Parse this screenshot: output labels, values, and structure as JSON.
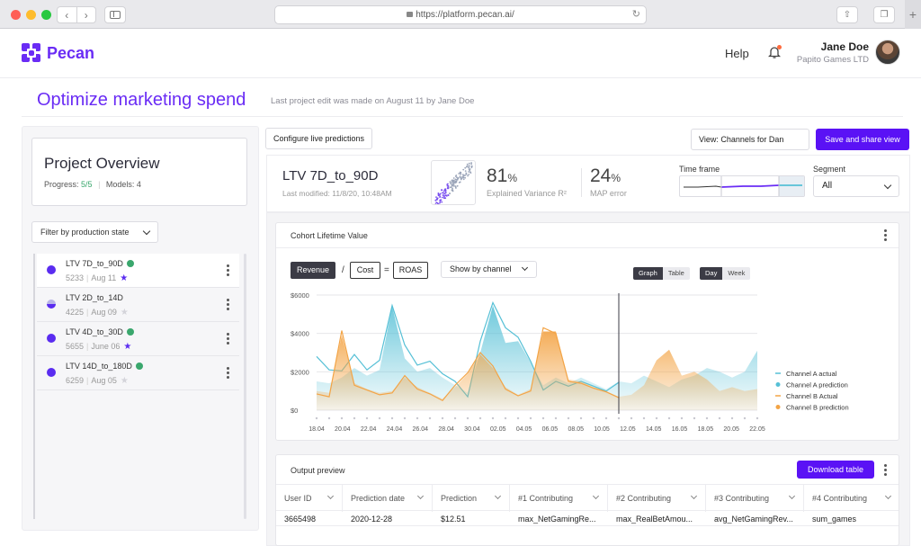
{
  "browser": {
    "url": "https://platform.pecan.ai/",
    "back_icon": "chevron-left-icon",
    "forward_icon": "chevron-right-icon",
    "new_tab_label": "+"
  },
  "header": {
    "logo_text": "Pecan",
    "help_label": "Help",
    "user_name": "Jane Doe",
    "user_company": "Papito Games LTD"
  },
  "title_row": {
    "title": "Optimize marketing spend",
    "last_edit": "Last project edit was made on August 11 by Jane Doe"
  },
  "overview": {
    "title": "Project Overview",
    "progress_label": "Progress:",
    "progress_value": "5/5",
    "models_label": "Models: 4",
    "filter_label": "Filter by production state"
  },
  "models": [
    {
      "name": "LTV 7D_to_90D",
      "id": "5233",
      "date": "Aug 11",
      "checked": true,
      "starred": true
    },
    {
      "name": "LTV 2D_to_14D",
      "id": "4225",
      "date": "Aug 09",
      "checked": false,
      "starred": false
    },
    {
      "name": "LTV 4D_to_30D",
      "id": "5655",
      "date": "June 06",
      "checked": true,
      "starred": true
    },
    {
      "name": "LTV 14D_to_180D",
      "id": "6259",
      "date": "Aug 05",
      "checked": true,
      "starred": false
    }
  ],
  "toolbar": {
    "configure_label": "Configure live predictions",
    "view_label": "View: Channels for Dan",
    "save_share_label": "Save and share view"
  },
  "summary": {
    "model_title": "LTV 7D_to_90D",
    "modified": "Last modified: 11/8/20, 10:48AM",
    "explained_variance_value": "81",
    "explained_variance_unit": "%",
    "explained_variance_label": "Explained Variance R²",
    "map_error_value": "24",
    "map_error_unit": "%",
    "map_error_label": "MAP error",
    "time_frame_label": "Time frame",
    "segment_label": "Segment",
    "segment_value": "All"
  },
  "cohort": {
    "title": "Cohort Lifetime Value",
    "revenue_label": "Revenue",
    "divide_op": "/",
    "cost_label": "Cost",
    "equals_op": "=",
    "roas_label": "ROAS",
    "show_by_label": "Show by channel",
    "graph_label": "Graph",
    "table_label": "Table",
    "day_label": "Day",
    "week_label": "Week"
  },
  "chart_data": {
    "type": "area",
    "y_ticks": [
      "$0",
      "$2000",
      "$4000",
      "$6000"
    ],
    "ylim": [
      0,
      6000
    ],
    "x_ticks": [
      "18.04",
      "20.04",
      "22.04",
      "24.04",
      "26.04",
      "28.04",
      "30.04",
      "02.05",
      "04.05",
      "06.05",
      "08.05",
      "10.05",
      "12.05",
      "14.05",
      "16.05",
      "18.05",
      "20.05",
      "22.05"
    ],
    "cursor_index": 24,
    "series": [
      {
        "name": "Channel A actual",
        "color": "#56c0d6",
        "style": "line",
        "values": [
          2800,
          2100,
          2050,
          2900,
          2100,
          2600,
          5450,
          3400,
          2350,
          2550,
          1900,
          1500,
          700,
          3600,
          5600,
          4300,
          3800,
          2550,
          1050,
          1500,
          1250,
          1500,
          1250,
          1000,
          1450,
          null,
          null,
          null,
          null,
          null,
          null,
          null,
          null,
          null,
          null,
          null
        ]
      },
      {
        "name": "Channel A prediction",
        "color": "#56c0d6",
        "style": "area",
        "values": [
          1500,
          1400,
          1700,
          2200,
          1800,
          2100,
          5400,
          2700,
          2000,
          2200,
          1700,
          1300,
          900,
          3000,
          5450,
          3500,
          3600,
          2500,
          1300,
          1700,
          1400,
          1700,
          1400,
          1100,
          1500,
          1400,
          1800,
          1500,
          1200,
          1600,
          1800,
          2200,
          2000,
          1700,
          2000,
          3100
        ]
      },
      {
        "name": "Channel B Actual",
        "color": "#f3a446",
        "style": "line",
        "values": [
          850,
          700,
          4150,
          1300,
          1050,
          800,
          900,
          1800,
          1100,
          850,
          500,
          1300,
          1950,
          3000,
          2300,
          1100,
          750,
          1000,
          4300,
          4000,
          1500,
          1400,
          1150,
          950,
          650,
          null,
          null,
          null,
          null,
          null,
          null,
          null,
          null,
          null,
          null,
          null
        ]
      },
      {
        "name": "Channel B prediction",
        "color": "#f3a446",
        "style": "area",
        "values": [
          1000,
          900,
          3900,
          1400,
          1100,
          900,
          1000,
          1700,
          1200,
          900,
          600,
          1200,
          1900,
          2900,
          2200,
          1200,
          800,
          1100,
          4100,
          4100,
          1600,
          1500,
          1200,
          1000,
          700,
          800,
          1300,
          2600,
          3150,
          1800,
          2000,
          1600,
          1000,
          1200,
          1000,
          1100
        ]
      }
    ]
  },
  "output": {
    "title": "Output preview",
    "download_label": "Download table",
    "columns": [
      "User ID",
      "Prediction date",
      "Prediction",
      "#1 Contributing",
      "#2 Contributing",
      "#3 Contributing",
      "#4 Contributing"
    ],
    "rows": [
      [
        "3665498",
        "2020-12-28",
        "$12.51",
        "max_NetGamingRe...",
        "max_RealBetAmou...",
        "avg_NetGamingRev...",
        "sum_games"
      ]
    ]
  },
  "colors": {
    "brand": "#6a2cf5",
    "primary_button": "#5a12f5",
    "success": "#3aa76d",
    "channel_a": "#56c0d6",
    "channel_b": "#f3a446"
  }
}
